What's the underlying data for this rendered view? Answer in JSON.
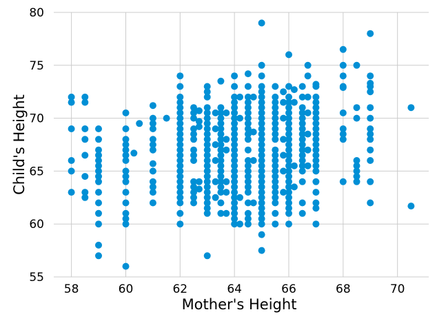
{
  "chart_data": {
    "type": "scatter",
    "title": "",
    "xlabel": "Mother's Height",
    "ylabel": "Child's Height",
    "xlim": [
      57.35,
      71.15
    ],
    "ylim": [
      55,
      80
    ],
    "xticks": [
      58,
      60,
      62,
      64,
      66,
      68,
      70
    ],
    "yticks": [
      55,
      60,
      65,
      70,
      75,
      80
    ],
    "grid": true,
    "marker_color": "#008fd5",
    "background_color": "#ffffff",
    "grid_color": "#cbcbcb",
    "points": [
      [
        58,
        72
      ],
      [
        58,
        71.5
      ],
      [
        58,
        69
      ],
      [
        58,
        66
      ],
      [
        58,
        65
      ],
      [
        58,
        63
      ],
      [
        58.5,
        72
      ],
      [
        58.5,
        71.5
      ],
      [
        58.5,
        69
      ],
      [
        58.5,
        68
      ],
      [
        58.5,
        66.5
      ],
      [
        58.5,
        64.5
      ],
      [
        58.5,
        63
      ],
      [
        58.5,
        62.5
      ],
      [
        59,
        69
      ],
      [
        59,
        68
      ],
      [
        59,
        67
      ],
      [
        59,
        66.5
      ],
      [
        59,
        66
      ],
      [
        59,
        65.5
      ],
      [
        59,
        65
      ],
      [
        59,
        64.5
      ],
      [
        59,
        64
      ],
      [
        59,
        63
      ],
      [
        59,
        62
      ],
      [
        59,
        61
      ],
      [
        59,
        60
      ],
      [
        59,
        58
      ],
      [
        59,
        57
      ],
      [
        60,
        70.5
      ],
      [
        60,
        69
      ],
      [
        60,
        68
      ],
      [
        60,
        67.5
      ],
      [
        60,
        67
      ],
      [
        60,
        66.5
      ],
      [
        60,
        66
      ],
      [
        60,
        65
      ],
      [
        60,
        64.5
      ],
      [
        60,
        64
      ],
      [
        60,
        63
      ],
      [
        60,
        62
      ],
      [
        60,
        61
      ],
      [
        60,
        60.5
      ],
      [
        60,
        60
      ],
      [
        60,
        56
      ],
      [
        60.3,
        66.7
      ],
      [
        60.5,
        69.5
      ],
      [
        61,
        71.2
      ],
      [
        61,
        70
      ],
      [
        61,
        69.5
      ],
      [
        61,
        69
      ],
      [
        61,
        68
      ],
      [
        61,
        67.5
      ],
      [
        61,
        67
      ],
      [
        61,
        65.7
      ],
      [
        61,
        65
      ],
      [
        61,
        64
      ],
      [
        61,
        63.5
      ],
      [
        61,
        63
      ],
      [
        61,
        62
      ],
      [
        61.5,
        70
      ],
      [
        62,
        74
      ],
      [
        62,
        73
      ],
      [
        62,
        72
      ],
      [
        62,
        71.5
      ],
      [
        62,
        71
      ],
      [
        62,
        70.5
      ],
      [
        62,
        70
      ],
      [
        62,
        69.5
      ],
      [
        62,
        69
      ],
      [
        62,
        68.5
      ],
      [
        62,
        68
      ],
      [
        62,
        67.5
      ],
      [
        62,
        67
      ],
      [
        62,
        66.5
      ],
      [
        62,
        66
      ],
      [
        62,
        65.5
      ],
      [
        62,
        65
      ],
      [
        62,
        64.5
      ],
      [
        62,
        64
      ],
      [
        62,
        63.5
      ],
      [
        62,
        63
      ],
      [
        62,
        62.5
      ],
      [
        62,
        62
      ],
      [
        62,
        61
      ],
      [
        62,
        60
      ],
      [
        62.5,
        71
      ],
      [
        62.5,
        70.5
      ],
      [
        62.5,
        70
      ],
      [
        62.5,
        69
      ],
      [
        62.5,
        68.5
      ],
      [
        62.5,
        68
      ],
      [
        62.5,
        67
      ],
      [
        62.5,
        66.5
      ],
      [
        62.5,
        66
      ],
      [
        62.5,
        64
      ],
      [
        62.5,
        63.5
      ],
      [
        62.5,
        63
      ],
      [
        62.5,
        62.5
      ],
      [
        62.5,
        62
      ],
      [
        62.7,
        70.7
      ],
      [
        62.7,
        69.7
      ],
      [
        62.7,
        69.2
      ],
      [
        62.7,
        64
      ],
      [
        62.7,
        63.3
      ],
      [
        63,
        73
      ],
      [
        63,
        72.5
      ],
      [
        63,
        72
      ],
      [
        63,
        71
      ],
      [
        63,
        70.5
      ],
      [
        63,
        70
      ],
      [
        63,
        69.5
      ],
      [
        63,
        69
      ],
      [
        63,
        68.5
      ],
      [
        63,
        68
      ],
      [
        63,
        67.5
      ],
      [
        63,
        67
      ],
      [
        63,
        66.5
      ],
      [
        63,
        66
      ],
      [
        63,
        65.5
      ],
      [
        63,
        65
      ],
      [
        63,
        64.5
      ],
      [
        63,
        64
      ],
      [
        63,
        63.5
      ],
      [
        63,
        63
      ],
      [
        63,
        62.5
      ],
      [
        63,
        62
      ],
      [
        63,
        61.5
      ],
      [
        63,
        61
      ],
      [
        63,
        57
      ],
      [
        63.3,
        70.5
      ],
      [
        63.3,
        69
      ],
      [
        63.3,
        67.5
      ],
      [
        63.3,
        66
      ],
      [
        63.3,
        64
      ],
      [
        63.3,
        62.5
      ],
      [
        63.5,
        73.5
      ],
      [
        63.5,
        71
      ],
      [
        63.5,
        70.5
      ],
      [
        63.5,
        70
      ],
      [
        63.5,
        69.5
      ],
      [
        63.5,
        69
      ],
      [
        63.5,
        68.5
      ],
      [
        63.5,
        68
      ],
      [
        63.5,
        67.5
      ],
      [
        63.5,
        67
      ],
      [
        63.5,
        66.5
      ],
      [
        63.5,
        66
      ],
      [
        63.5,
        65.5
      ],
      [
        63.5,
        65
      ],
      [
        63.5,
        64.5
      ],
      [
        63.5,
        64
      ],
      [
        63.5,
        63.5
      ],
      [
        63.5,
        63
      ],
      [
        63.5,
        62
      ],
      [
        63.5,
        61
      ],
      [
        63.7,
        70.5
      ],
      [
        63.7,
        68
      ],
      [
        63.7,
        67
      ],
      [
        63.7,
        64
      ],
      [
        63.7,
        63
      ],
      [
        63.7,
        61
      ],
      [
        64,
        74
      ],
      [
        64,
        73
      ],
      [
        64,
        72
      ],
      [
        64,
        71.5
      ],
      [
        64,
        71
      ],
      [
        64,
        70.5
      ],
      [
        64,
        70
      ],
      [
        64,
        69.5
      ],
      [
        64,
        69
      ],
      [
        64,
        68.5
      ],
      [
        64,
        68
      ],
      [
        64,
        67.5
      ],
      [
        64,
        67
      ],
      [
        64,
        66.5
      ],
      [
        64,
        66
      ],
      [
        64,
        65.5
      ],
      [
        64,
        65
      ],
      [
        64,
        64.5
      ],
      [
        64,
        64
      ],
      [
        64,
        63.5
      ],
      [
        64,
        63
      ],
      [
        64,
        62.5
      ],
      [
        64,
        62
      ],
      [
        64,
        61.5
      ],
      [
        64,
        61
      ],
      [
        64,
        60.5
      ],
      [
        64,
        60
      ],
      [
        64.2,
        72
      ],
      [
        64.2,
        70
      ],
      [
        64.2,
        62.5
      ],
      [
        64.2,
        60
      ],
      [
        64.5,
        74.2
      ],
      [
        64.5,
        73
      ],
      [
        64.5,
        72
      ],
      [
        64.5,
        71.5
      ],
      [
        64.5,
        71
      ],
      [
        64.5,
        70.5
      ],
      [
        64.5,
        70
      ],
      [
        64.5,
        69.5
      ],
      [
        64.5,
        69
      ],
      [
        64.5,
        68.5
      ],
      [
        64.5,
        68
      ],
      [
        64.5,
        67
      ],
      [
        64.5,
        66
      ],
      [
        64.5,
        65.5
      ],
      [
        64.5,
        65
      ],
      [
        64.5,
        64.5
      ],
      [
        64.5,
        64
      ],
      [
        64.5,
        63.5
      ],
      [
        64.5,
        63
      ],
      [
        64.5,
        62
      ],
      [
        64.5,
        61
      ],
      [
        64.5,
        60.5
      ],
      [
        64.5,
        60
      ],
      [
        64.7,
        72
      ],
      [
        64.7,
        68.7
      ],
      [
        64.7,
        66
      ],
      [
        64.7,
        62
      ],
      [
        65,
        79
      ],
      [
        65,
        75
      ],
      [
        65,
        74
      ],
      [
        65,
        73
      ],
      [
        65,
        72.5
      ],
      [
        65,
        72
      ],
      [
        65,
        71.5
      ],
      [
        65,
        71
      ],
      [
        65,
        70.5
      ],
      [
        65,
        70
      ],
      [
        65,
        69.5
      ],
      [
        65,
        69
      ],
      [
        65,
        68.5
      ],
      [
        65,
        68
      ],
      [
        65,
        67.5
      ],
      [
        65,
        67
      ],
      [
        65,
        66.5
      ],
      [
        65,
        66
      ],
      [
        65,
        65.5
      ],
      [
        65,
        65
      ],
      [
        65,
        64.5
      ],
      [
        65,
        64
      ],
      [
        65,
        63.5
      ],
      [
        65,
        63
      ],
      [
        65,
        62.5
      ],
      [
        65,
        62
      ],
      [
        65,
        61.5
      ],
      [
        65,
        61
      ],
      [
        65,
        60.5
      ],
      [
        65,
        60
      ],
      [
        65,
        59
      ],
      [
        65,
        57.5
      ],
      [
        65.5,
        73
      ],
      [
        65.5,
        72
      ],
      [
        65.5,
        71.5
      ],
      [
        65.5,
        71
      ],
      [
        65.5,
        70.5
      ],
      [
        65.5,
        70
      ],
      [
        65.5,
        69.5
      ],
      [
        65.5,
        69
      ],
      [
        65.5,
        68.5
      ],
      [
        65.5,
        68
      ],
      [
        65.5,
        67
      ],
      [
        65.5,
        66.5
      ],
      [
        65.5,
        66
      ],
      [
        65.5,
        65.5
      ],
      [
        65.5,
        65
      ],
      [
        65.5,
        64.5
      ],
      [
        65.5,
        64
      ],
      [
        65.5,
        63.5
      ],
      [
        65.5,
        63
      ],
      [
        65.5,
        62.5
      ],
      [
        65.5,
        62
      ],
      [
        65.5,
        61
      ],
      [
        65.5,
        60
      ],
      [
        65.8,
        72.5
      ],
      [
        65.8,
        71.5
      ],
      [
        65.8,
        70
      ],
      [
        65.8,
        68
      ],
      [
        65.8,
        66.5
      ],
      [
        65.8,
        65
      ],
      [
        65.8,
        63
      ],
      [
        66,
        76
      ],
      [
        66,
        73
      ],
      [
        66,
        72
      ],
      [
        66,
        71.5
      ],
      [
        66,
        71
      ],
      [
        66,
        70.5
      ],
      [
        66,
        70
      ],
      [
        66,
        69.5
      ],
      [
        66,
        69
      ],
      [
        66,
        68.5
      ],
      [
        66,
        68
      ],
      [
        66,
        67.5
      ],
      [
        66,
        67
      ],
      [
        66,
        66.5
      ],
      [
        66,
        66
      ],
      [
        66,
        65.5
      ],
      [
        66,
        65
      ],
      [
        66,
        64.5
      ],
      [
        66,
        64
      ],
      [
        66,
        63.5
      ],
      [
        66,
        63
      ],
      [
        66,
        62.5
      ],
      [
        66,
        62
      ],
      [
        66,
        61.5
      ],
      [
        66,
        61
      ],
      [
        66,
        60
      ],
      [
        66.2,
        72.7
      ],
      [
        66.2,
        71.5
      ],
      [
        66.2,
        65.5
      ],
      [
        66.2,
        63.5
      ],
      [
        66.5,
        73
      ],
      [
        66.5,
        72
      ],
      [
        66.5,
        71
      ],
      [
        66.5,
        70.5
      ],
      [
        66.5,
        70
      ],
      [
        66.5,
        69.5
      ],
      [
        66.5,
        69
      ],
      [
        66.5,
        68.5
      ],
      [
        66.5,
        68
      ],
      [
        66.5,
        67.5
      ],
      [
        66.5,
        67
      ],
      [
        66.5,
        66.5
      ],
      [
        66.5,
        66
      ],
      [
        66.5,
        65.5
      ],
      [
        66.5,
        65
      ],
      [
        66.5,
        64
      ],
      [
        66.5,
        62
      ],
      [
        66.5,
        61
      ],
      [
        66.7,
        75
      ],
      [
        66.7,
        74
      ],
      [
        66.7,
        72
      ],
      [
        66.7,
        70.5
      ],
      [
        66.7,
        68.5
      ],
      [
        66.7,
        67
      ],
      [
        66.7,
        65.5
      ],
      [
        67,
        73.2
      ],
      [
        67,
        73
      ],
      [
        67,
        72
      ],
      [
        67,
        71.5
      ],
      [
        67,
        71
      ],
      [
        67,
        70.5
      ],
      [
        67,
        70
      ],
      [
        67,
        69.5
      ],
      [
        67,
        69
      ],
      [
        67,
        68.5
      ],
      [
        67,
        68
      ],
      [
        67,
        67.5
      ],
      [
        67,
        67
      ],
      [
        67,
        66.5
      ],
      [
        67,
        66
      ],
      [
        67,
        65.5
      ],
      [
        67,
        65
      ],
      [
        67,
        64
      ],
      [
        67,
        63
      ],
      [
        67,
        62
      ],
      [
        67,
        61.5
      ],
      [
        67,
        60
      ],
      [
        68,
        76.5
      ],
      [
        68,
        75
      ],
      [
        68,
        74
      ],
      [
        68,
        73
      ],
      [
        68,
        72.9
      ],
      [
        68,
        70.5
      ],
      [
        68,
        69
      ],
      [
        68,
        68.5
      ],
      [
        68,
        68
      ],
      [
        68,
        64
      ],
      [
        68.5,
        75
      ],
      [
        68.5,
        71
      ],
      [
        68.5,
        70
      ],
      [
        68.5,
        66
      ],
      [
        68.5,
        65.5
      ],
      [
        68.5,
        65
      ],
      [
        68.5,
        64.5
      ],
      [
        68.5,
        64
      ],
      [
        69,
        78
      ],
      [
        69,
        74
      ],
      [
        69,
        73.3
      ],
      [
        69,
        73
      ],
      [
        69,
        72.5
      ],
      [
        69,
        71
      ],
      [
        69,
        70
      ],
      [
        69,
        69
      ],
      [
        69,
        68.5
      ],
      [
        69,
        68
      ],
      [
        69,
        67
      ],
      [
        69,
        66
      ],
      [
        69,
        64
      ],
      [
        69,
        62
      ],
      [
        70.5,
        71
      ],
      [
        70.5,
        61.7
      ]
    ]
  }
}
